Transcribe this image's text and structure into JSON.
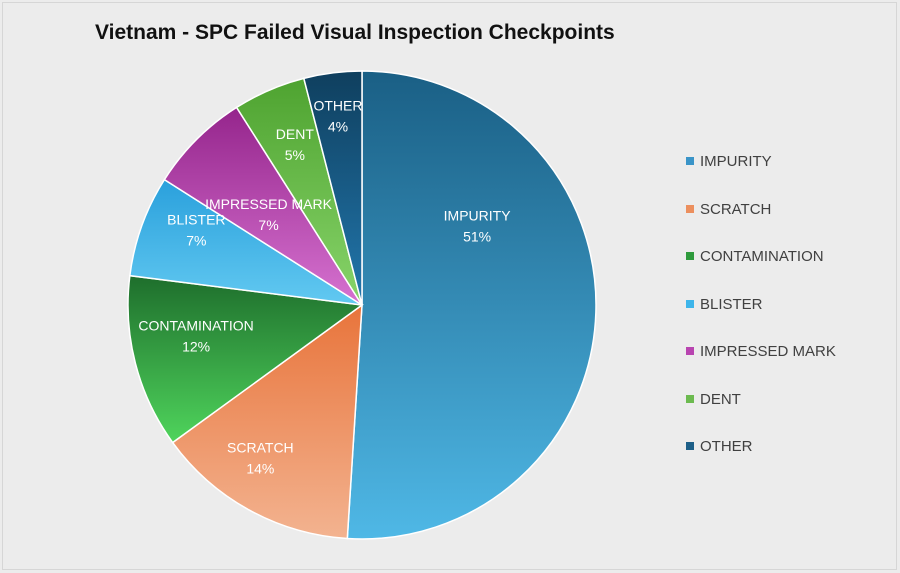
{
  "chart_data": {
    "type": "pie",
    "title": "Vietnam - SPC Failed Visual Inspection Checkpoints",
    "categories": [
      "IMPURITY",
      "SCRATCH",
      "CONTAMINATION",
      "BLISTER",
      "IMPRESSED MARK",
      "DENT",
      "OTHER"
    ],
    "values": [
      51,
      14,
      12,
      7,
      7,
      5,
      4
    ],
    "labels": [
      "51%",
      "14%",
      "12%",
      "7%",
      "7%",
      "5%",
      "4%"
    ],
    "legend_position": "right",
    "colors": [
      {
        "light": "#4fb8e6",
        "dark": "#1a5f85"
      },
      {
        "light": "#f3b390",
        "dark": "#e8743b"
      },
      {
        "light": "#4fd45c",
        "dark": "#1e6e2c"
      },
      {
        "light": "#62c9f1",
        "dark": "#2aa0dc"
      },
      {
        "light": "#d672d0",
        "dark": "#95258c"
      },
      {
        "light": "#88d46a",
        "dark": "#4ea330"
      },
      {
        "light": "#2277ad",
        "dark": "#0f3f5e"
      }
    ],
    "legend_colors": [
      "#3a94c8",
      "#ec8f5e",
      "#2e9a3c",
      "#3eb5ea",
      "#b844b0",
      "#6cba4f",
      "#1d5f88"
    ]
  }
}
